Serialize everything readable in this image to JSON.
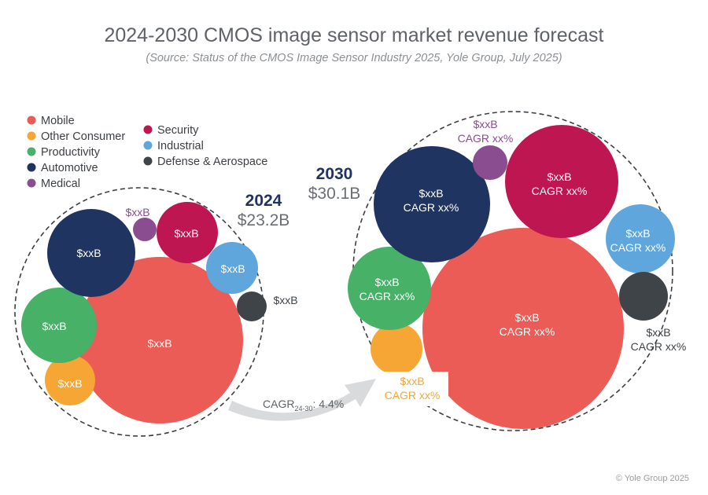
{
  "chart_data": {
    "type": "bubble",
    "title": "2024-2030 CMOS image sensor market revenue forecast",
    "subtitle": "(Source: Status of the CMOS Image Sensor Industry 2025, Yole Group, July 2025)",
    "legend_position": "top-left",
    "segments": [
      {
        "name": "Mobile",
        "color": "#eb5c57"
      },
      {
        "name": "Other Consumer",
        "color": "#f5a634"
      },
      {
        "name": "Productivity",
        "color": "#46b167"
      },
      {
        "name": "Automotive",
        "color": "#1f3460"
      },
      {
        "name": "Medical",
        "color": "#8a4d8f"
      },
      {
        "name": "Security",
        "color": "#be1650"
      },
      {
        "name": "Industrial",
        "color": "#5ea6dc"
      },
      {
        "name": "Defense & Aerospace",
        "color": "#3f4449"
      }
    ],
    "years": [
      {
        "year": "2024",
        "total": "$23.2B",
        "values": [
          {
            "segment": "Mobile",
            "value": "$xxB"
          },
          {
            "segment": "Other Consumer",
            "value": "$xxB"
          },
          {
            "segment": "Productivity",
            "value": "$xxB"
          },
          {
            "segment": "Automotive",
            "value": "$xxB"
          },
          {
            "segment": "Medical",
            "value": "$xxB"
          },
          {
            "segment": "Security",
            "value": "$xxB"
          },
          {
            "segment": "Industrial",
            "value": "$xxB"
          },
          {
            "segment": "Defense & Aerospace",
            "value": "$xxB"
          }
        ]
      },
      {
        "year": "2030",
        "total": "$30.1B",
        "values": [
          {
            "segment": "Mobile",
            "value": "$xxB",
            "cagr": "CAGR xx%"
          },
          {
            "segment": "Other Consumer",
            "value": "$xxB",
            "cagr": "CAGR xx%"
          },
          {
            "segment": "Productivity",
            "value": "$xxB",
            "cagr": "CAGR xx%"
          },
          {
            "segment": "Automotive",
            "value": "$xxB",
            "cagr": "CAGR xx%"
          },
          {
            "segment": "Medical",
            "value": "$xxB",
            "cagr": "CAGR xx%"
          },
          {
            "segment": "Security",
            "value": "$xxB",
            "cagr": "CAGR xx%"
          },
          {
            "segment": "Industrial",
            "value": "$xxB",
            "cagr": "CAGR xx%"
          },
          {
            "segment": "Defense & Aerospace",
            "value": "$xxB",
            "cagr": "CAGR xx%"
          }
        ]
      }
    ],
    "overall_cagr": {
      "label": "CAGR",
      "subscript": "24-30",
      "value": ": 4.4%"
    }
  },
  "copyright": "© Yole Group 2025"
}
